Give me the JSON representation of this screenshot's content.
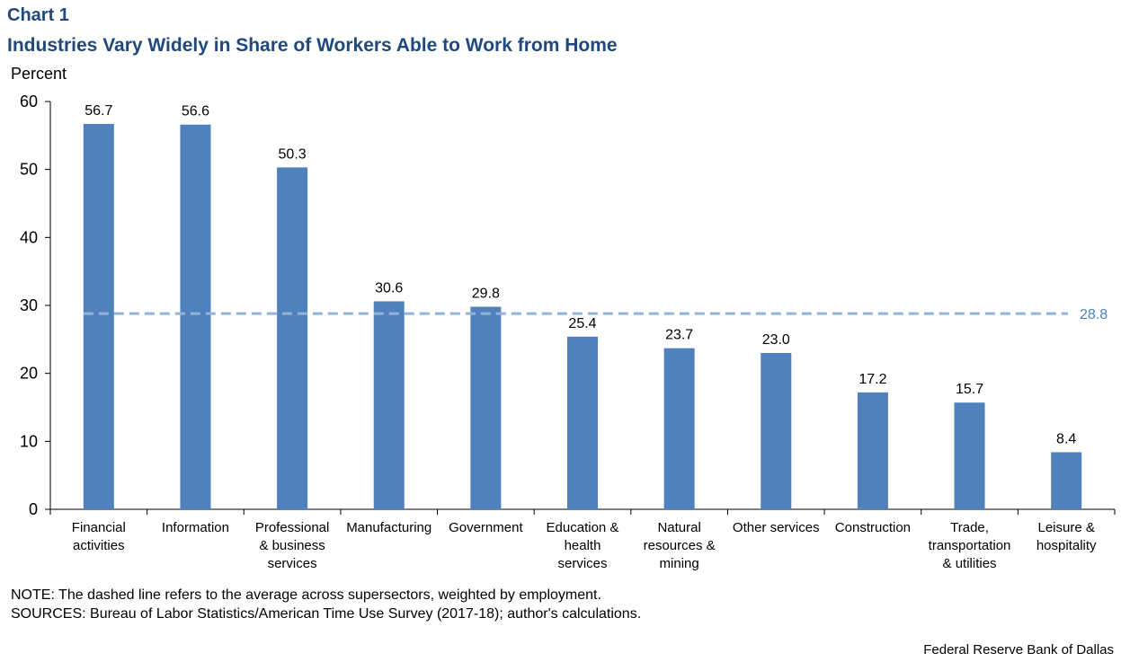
{
  "header": {
    "chart_label": "Chart 1",
    "title": "Industries Vary Widely in Share of Workers Able to Work from Home"
  },
  "chart_data": {
    "type": "bar",
    "title": "Industries Vary Widely in Share of Workers Able to Work from Home",
    "ylabel": "Percent",
    "xlabel": "",
    "ylim": [
      0,
      60
    ],
    "yticks": [
      0,
      10,
      20,
      30,
      40,
      50,
      60
    ],
    "grid": false,
    "categories": [
      [
        "Financial",
        "activities"
      ],
      [
        "Information"
      ],
      [
        "Professional",
        "& business",
        "services"
      ],
      [
        "Manufacturing"
      ],
      [
        "Government"
      ],
      [
        "Education &",
        "health",
        "services"
      ],
      [
        "Natural",
        "resources &",
        "mining"
      ],
      [
        "Other services"
      ],
      [
        "Construction"
      ],
      [
        "Trade,",
        "transportation",
        "& utilities"
      ],
      [
        "Leisure &",
        "hospitality"
      ]
    ],
    "values": [
      56.7,
      56.6,
      50.3,
      30.6,
      29.8,
      25.4,
      23.7,
      23.0,
      17.2,
      15.7,
      8.4
    ],
    "value_labels": [
      "56.7",
      "56.6",
      "50.3",
      "30.6",
      "29.8",
      "25.4",
      "23.7",
      "23.0",
      "17.2",
      "15.7",
      "8.4"
    ],
    "reference_line": {
      "value": 28.8,
      "label": "28.8",
      "style": "dashed"
    },
    "colors": {
      "bar": "#4f81bd",
      "reference_line": "#95b3d7",
      "reference_label": "#4f81bd"
    }
  },
  "notes": {
    "note": "NOTE: The dashed line refers to the average across supersectors, weighted by employment.",
    "sources": "SOURCES: Bureau of Labor Statistics/American  Time Use Survey (2017-18); author's calculations."
  },
  "credit": "Federal Reserve  Bank of Dallas"
}
